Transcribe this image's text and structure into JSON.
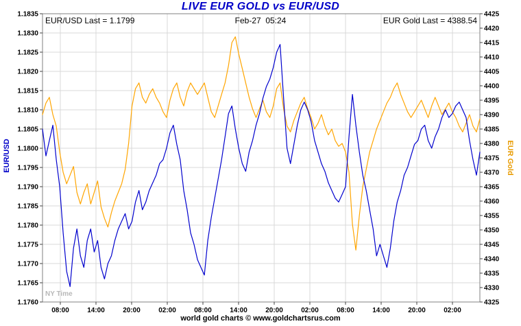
{
  "title": "LIVE EUR GOLD vs EUR/USD",
  "header": {
    "eurusd_last": "EUR/USD Last = 1.1799",
    "timestamp": "Feb-27  05:24",
    "gold_last": "EUR Gold Last = 4388.54"
  },
  "annotations": {
    "ny_time": "NY Time"
  },
  "footer": {
    "caption": "world gold charts © www.goldchartsrus.com"
  },
  "colors": {
    "title": "#0000c8",
    "eurusd_line": "#0000cd",
    "gold_line": "#ffa500",
    "grid": "#d9d9d9",
    "axis": "#808080"
  },
  "chart_data": {
    "type": "line",
    "title": "LIVE EUR GOLD vs EUR/USD",
    "timestamp": "Feb-27 05:24",
    "timezone_note": "NY Time",
    "x_tick_labels": [
      "08:00",
      "14:00",
      "20:00",
      "02:00",
      "08:00",
      "14:00",
      "20:00",
      "02:00",
      "08:00",
      "14:00",
      "20:00",
      "02:00"
    ],
    "left_axis": {
      "label": "EUR/USD",
      "min": 1.176,
      "max": 1.1835,
      "step": 0.0005,
      "tick_labels": [
        "1.1835",
        "1.1830",
        "1.1825",
        "1.1820",
        "1.1815",
        "1.1810",
        "1.1805",
        "1.1800",
        "1.1795",
        "1.1790",
        "1.1785",
        "1.1780",
        "1.1775",
        "1.1770",
        "1.1765",
        "1.1760"
      ]
    },
    "right_axis": {
      "label": "EUR Gold",
      "min": 4325,
      "max": 4425,
      "step": 5,
      "tick_labels": [
        "4425",
        "4420",
        "4415",
        "4410",
        "4405",
        "4400",
        "4395",
        "4390",
        "4385",
        "4380",
        "4375",
        "4370",
        "4365",
        "4360",
        "4355",
        "4350",
        "4345",
        "4340",
        "4335",
        "4330",
        "4325"
      ]
    },
    "last_values": {
      "eurusd": 1.1799,
      "gold": 4388.54
    },
    "series": [
      {
        "name": "EUR/USD",
        "axis": "left",
        "color": "#0000cd",
        "values": [
          1.1805,
          1.1798,
          1.1802,
          1.1806,
          1.1797,
          1.179,
          1.1778,
          1.1768,
          1.1764,
          1.1774,
          1.1779,
          1.1772,
          1.1769,
          1.1776,
          1.1779,
          1.1773,
          1.1776,
          1.1769,
          1.1766,
          1.177,
          1.1772,
          1.1776,
          1.1779,
          1.1781,
          1.1783,
          1.1779,
          1.1781,
          1.1786,
          1.1789,
          1.1784,
          1.1786,
          1.1789,
          1.1791,
          1.1793,
          1.1796,
          1.1797,
          1.18,
          1.1804,
          1.1806,
          1.1801,
          1.1797,
          1.1789,
          1.1784,
          1.1778,
          1.1775,
          1.1771,
          1.1769,
          1.1767,
          1.1776,
          1.1782,
          1.1787,
          1.1792,
          1.1797,
          1.1803,
          1.1809,
          1.1811,
          1.1805,
          1.18,
          1.1796,
          1.1794,
          1.1799,
          1.1802,
          1.1806,
          1.1809,
          1.1813,
          1.1816,
          1.1818,
          1.1821,
          1.1825,
          1.1827,
          1.1813,
          1.18,
          1.1796,
          1.1801,
          1.1806,
          1.181,
          1.1812,
          1.181,
          1.1807,
          1.1802,
          1.1799,
          1.1796,
          1.1794,
          1.1791,
          1.1789,
          1.1787,
          1.1786,
          1.1788,
          1.179,
          1.1803,
          1.1814,
          1.1806,
          1.1799,
          1.1793,
          1.1789,
          1.1784,
          1.1779,
          1.1772,
          1.1775,
          1.1772,
          1.1769,
          1.1774,
          1.1781,
          1.1786,
          1.1789,
          1.1793,
          1.1795,
          1.1798,
          1.1801,
          1.1802,
          1.1805,
          1.1806,
          1.1802,
          1.18,
          1.1803,
          1.1805,
          1.1808,
          1.181,
          1.1808,
          1.1809,
          1.1811,
          1.1812,
          1.181,
          1.1808,
          1.1802,
          1.1797,
          1.1793,
          1.1799
        ]
      },
      {
        "name": "EUR Gold",
        "axis": "right",
        "color": "#ffa500",
        "values": [
          4390,
          4394,
          4396,
          4390,
          4386,
          4377,
          4370,
          4366,
          4369,
          4372,
          4363,
          4359,
          4363,
          4366,
          4359,
          4363,
          4367,
          4358,
          4354,
          4351,
          4356,
          4360,
          4363,
          4366,
          4371,
          4380,
          4393,
          4399,
          4401,
          4396,
          4394,
          4397,
          4399,
          4396,
          4394,
          4391,
          4389,
          4395,
          4399,
          4401,
          4396,
          4393,
          4398,
          4401,
          4399,
          4397,
          4399,
          4401,
          4396,
          4391,
          4389,
          4393,
          4397,
          4401,
          4407,
          4415,
          4417,
          4411,
          4406,
          4401,
          4396,
          4392,
          4389,
          4392,
          4395,
          4391,
          4389,
          4393,
          4399,
          4401,
          4392,
          4386,
          4384,
          4388,
          4391,
          4394,
          4396,
          4392,
          4389,
          4385,
          4387,
          4390,
          4386,
          4383,
          4385,
          4381,
          4379,
          4380,
          4377,
          4370,
          4352,
          4343,
          4355,
          4365,
          4371,
          4377,
          4381,
          4385,
          4388,
          4391,
          4394,
          4396,
          4399,
          4401,
          4397,
          4394,
          4391,
          4389,
          4391,
          4393,
          4395,
          4392,
          4389,
          4393,
          4396,
          4393,
          4390,
          4392,
          4394,
          4391,
          4389,
          4386,
          4384,
          4387,
          4390,
          4386,
          4384,
          4388.54
        ]
      }
    ]
  }
}
